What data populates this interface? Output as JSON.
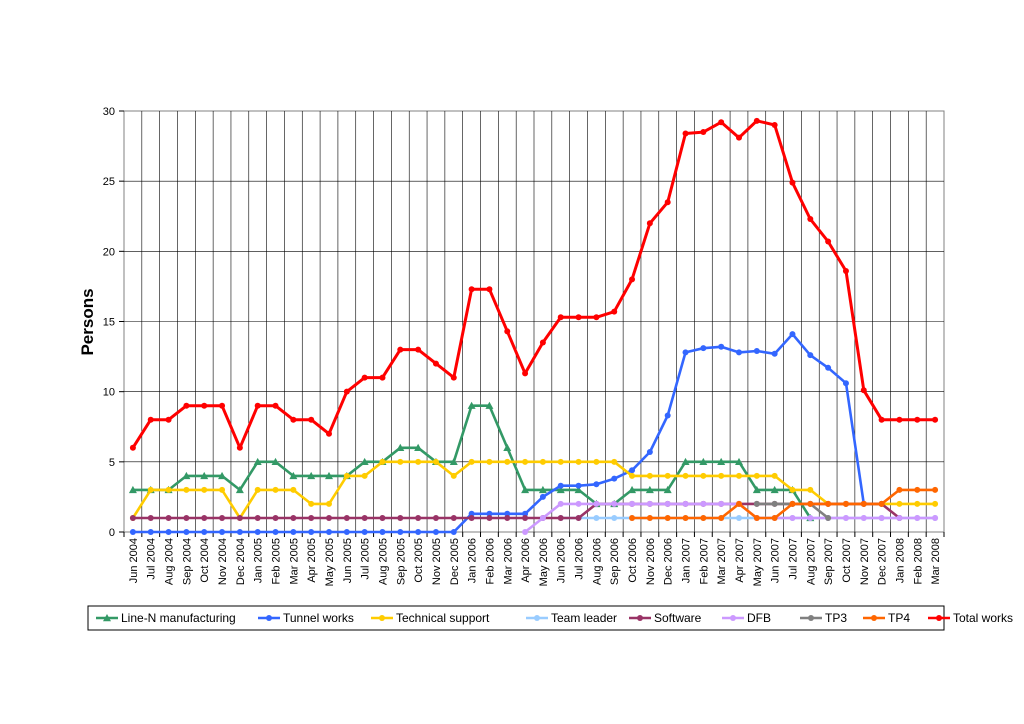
{
  "chart_data": {
    "type": "line",
    "ylabel": "Persons",
    "xlabel": "",
    "title": "",
    "ylim": [
      0,
      30
    ],
    "yticks": [
      0,
      5,
      10,
      15,
      20,
      25,
      30
    ],
    "grid": true,
    "legend_position": "bottom",
    "categories": [
      "Jun 2004",
      "Jul 2004",
      "Aug 2004",
      "Sep 2004",
      "Oct 2004",
      "Nov 2004",
      "Dec 2004",
      "Jan 2005",
      "Feb 2005",
      "Mar 2005",
      "Apr 2005",
      "May 2005",
      "Jun 2005",
      "Jul 2005",
      "Aug 2005",
      "Sep 2005",
      "Oct 2005",
      "Nov 2005",
      "Dec 2005",
      "Jan 2006",
      "Feb 2006",
      "Mar 2006",
      "Apr 2006",
      "May 2006",
      "Jun 2006",
      "Jul 2006",
      "Aug 2006",
      "Sep 2006",
      "Oct 2006",
      "Nov 2006",
      "Dec 2006",
      "Jan 2007",
      "Feb 2007",
      "Mar 2007",
      "Apr 2007",
      "May 2007",
      "Jun 2007",
      "Jul 2007",
      "Aug 2007",
      "Sep 2007",
      "Oct 2007",
      "Nov 2007",
      "Dec 2007",
      "Jan 2008",
      "Feb 2008",
      "Mar 2008"
    ],
    "series": [
      {
        "name": "Line-N manufacturing",
        "color": "#339966",
        "marker": "triangle",
        "values": [
          3,
          3,
          3,
          4,
          4,
          4,
          3,
          5,
          5,
          4,
          4,
          4,
          4,
          5,
          5,
          6,
          6,
          5,
          5,
          9,
          9,
          6,
          3,
          3,
          3,
          3,
          2,
          2,
          3,
          3,
          3,
          5,
          5,
          5,
          5,
          3,
          3,
          3,
          1,
          null,
          null,
          null,
          null,
          null,
          null,
          null
        ]
      },
      {
        "name": "Tunnel works",
        "color": "#3366ff",
        "marker": "circle",
        "values": [
          0,
          0,
          0,
          0,
          0,
          0,
          0,
          0,
          0,
          0,
          0,
          0,
          0,
          0,
          0,
          0,
          0,
          0,
          0,
          1.3,
          1.3,
          1.3,
          1.3,
          2.5,
          3.3,
          3.3,
          3.4,
          3.8,
          4.4,
          5.7,
          8.3,
          12.8,
          13.1,
          13.2,
          12.8,
          12.9,
          12.7,
          14.1,
          12.6,
          11.7,
          10.6,
          2,
          2,
          null,
          null,
          null
        ]
      },
      {
        "name": "Technical support",
        "color": "#ffcc00",
        "marker": "circle",
        "values": [
          1,
          3,
          3,
          3,
          3,
          3,
          1,
          3,
          3,
          3,
          2,
          2,
          4,
          4,
          5,
          5,
          5,
          5,
          4,
          5,
          5,
          5,
          5,
          5,
          5,
          5,
          5,
          5,
          4,
          4,
          4,
          4,
          4,
          4,
          4,
          4,
          4,
          3,
          3,
          2,
          2,
          2,
          2,
          2,
          2,
          2
        ]
      },
      {
        "name": "Team leader",
        "color": "#99ccff",
        "marker": "circle",
        "values": [
          null,
          null,
          null,
          null,
          null,
          null,
          null,
          null,
          null,
          null,
          null,
          null,
          null,
          null,
          null,
          null,
          null,
          null,
          null,
          null,
          null,
          null,
          null,
          null,
          1,
          1,
          1,
          1,
          1,
          1,
          1,
          1,
          1,
          1,
          1,
          1,
          1,
          1,
          1,
          1,
          1,
          1,
          1,
          1,
          1,
          1
        ]
      },
      {
        "name": "Software",
        "color": "#993366",
        "marker": "circle",
        "values": [
          1,
          1,
          1,
          1,
          1,
          1,
          1,
          1,
          1,
          1,
          1,
          1,
          1,
          1,
          1,
          1,
          1,
          1,
          1,
          1,
          1,
          1,
          1,
          1,
          1,
          1,
          2,
          2,
          2,
          2,
          2,
          2,
          2,
          2,
          2,
          2,
          2,
          2,
          2,
          2,
          2,
          2,
          2,
          1,
          null,
          null
        ]
      },
      {
        "name": "DFB",
        "color": "#cc99ff",
        "marker": "circle",
        "values": [
          null,
          null,
          null,
          null,
          null,
          null,
          null,
          null,
          null,
          null,
          null,
          null,
          null,
          null,
          null,
          null,
          null,
          null,
          null,
          null,
          null,
          null,
          0,
          1,
          2,
          2,
          2,
          2,
          2,
          2,
          2,
          2,
          2,
          2,
          2,
          1,
          1,
          1,
          1,
          1,
          1,
          1,
          1,
          1,
          1,
          1
        ]
      },
      {
        "name": "TP3",
        "color": "#808080",
        "marker": "circle",
        "values": [
          null,
          null,
          null,
          null,
          null,
          null,
          null,
          null,
          null,
          null,
          null,
          null,
          null,
          null,
          null,
          null,
          null,
          null,
          null,
          null,
          null,
          null,
          null,
          null,
          null,
          null,
          null,
          null,
          null,
          null,
          null,
          null,
          null,
          null,
          null,
          2,
          2,
          2,
          2,
          1,
          null,
          null,
          null,
          null,
          null,
          null
        ]
      },
      {
        "name": "TP4",
        "color": "#ff6600",
        "marker": "circle",
        "values": [
          null,
          null,
          null,
          null,
          null,
          null,
          null,
          null,
          null,
          null,
          null,
          null,
          null,
          null,
          null,
          null,
          null,
          null,
          null,
          null,
          null,
          null,
          null,
          null,
          null,
          null,
          null,
          null,
          1,
          1,
          1,
          1,
          1,
          1,
          2,
          1,
          1,
          2,
          2,
          2,
          2,
          2,
          2,
          3,
          3,
          3
        ]
      },
      {
        "name": "Total works",
        "color": "#ff0000",
        "marker": "circle",
        "values": [
          6,
          8,
          8,
          9,
          9,
          9,
          6,
          9,
          9,
          8,
          8,
          7,
          10,
          11,
          11,
          13,
          13,
          12,
          11,
          17.3,
          17.3,
          14.3,
          11.3,
          13.5,
          15.3,
          15.3,
          15.3,
          15.7,
          18,
          22,
          23.5,
          28.4,
          28.5,
          29.2,
          28.1,
          29.3,
          29,
          24.9,
          22.3,
          20.7,
          18.6,
          10.1,
          8,
          8,
          8,
          8
        ]
      }
    ]
  }
}
